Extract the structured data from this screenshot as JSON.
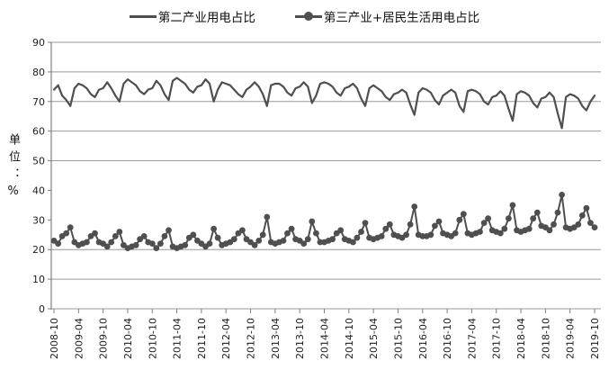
{
  "legend": {
    "items": [
      {
        "label": "第二产业用电占比",
        "marker": "line"
      },
      {
        "label": "第三产业+居民生活用电占比",
        "marker": "line-circle"
      }
    ]
  },
  "colors": {
    "series": "#4f4f4f",
    "gridline": "#9a9a9a",
    "axis": "#7f7f7f",
    "tick_text": "#1f1f1f"
  },
  "chart_data": {
    "type": "line",
    "title": "",
    "xlabel": "",
    "ylabel": "单位：%",
    "ylim": [
      0,
      90
    ],
    "ytick_interval": 10,
    "ytick_labels": [
      "0",
      "10",
      "20",
      "30",
      "40",
      "50",
      "60",
      "70",
      "80",
      "90"
    ],
    "gridline_values": [
      90,
      80,
      70,
      60,
      50,
      20,
      10,
      0
    ],
    "grid": "horizontal",
    "legend_position": "top-center",
    "x_frequency": "monthly",
    "x_start": "2008-10",
    "x_end": "2019-10",
    "x_tick_every_n_points": 6,
    "x_tick_labels": [
      "2008-10",
      "2009-04",
      "2009-10",
      "2010-04",
      "2010-10",
      "2011-04",
      "2011-10",
      "2012-04",
      "2012-10",
      "2013-04",
      "2013-10",
      "2014-04",
      "2014-10",
      "2015-04",
      "2015-10",
      "2016-04",
      "2016-10",
      "2017-04",
      "2017-10",
      "2018-04",
      "2018-10",
      "2019-04",
      "2019-10"
    ],
    "series": [
      {
        "name": "第二产业用电占比",
        "marker": "none",
        "color": "#4f4f4f",
        "values": [
          74,
          75.5,
          72,
          70.5,
          68.5,
          74.5,
          76,
          75.5,
          74.5,
          72.5,
          71.5,
          74,
          74.5,
          76.5,
          74.5,
          72,
          70,
          76,
          77.5,
          76.5,
          75.5,
          73.5,
          72.5,
          74,
          74.5,
          77,
          75.5,
          72.5,
          70.5,
          77,
          78,
          77,
          76,
          74,
          73,
          75,
          75.5,
          77.5,
          76,
          70,
          74,
          76.5,
          76,
          75.5,
          74,
          72.5,
          71.5,
          74,
          75,
          76.5,
          75,
          72.5,
          68.5,
          75.5,
          76,
          76,
          75,
          73,
          72,
          74.5,
          75,
          76.5,
          75,
          69.5,
          72,
          76,
          76.5,
          76,
          75,
          73,
          72,
          74.5,
          75,
          76,
          74.5,
          71,
          68.5,
          74.5,
          75.5,
          74.5,
          73.5,
          71.5,
          70.5,
          72.5,
          73,
          74,
          73,
          69,
          65.5,
          73,
          74.5,
          74,
          73,
          70.5,
          69,
          72,
          73,
          74,
          73,
          68.5,
          66.5,
          73.5,
          74,
          73.5,
          72.5,
          70,
          69,
          71.5,
          72,
          73.5,
          72,
          67.5,
          63.5,
          72.5,
          73.5,
          73,
          72,
          69.5,
          68,
          71,
          71.5,
          73,
          71.5,
          66,
          61,
          71.5,
          72.5,
          72,
          71,
          68.5,
          67,
          70,
          72
        ]
      },
      {
        "name": "第三产业+居民生活用电占比",
        "marker": "circle",
        "color": "#4f4f4f",
        "values": [
          23,
          22,
          24.5,
          25.5,
          27.5,
          22.5,
          21.5,
          22,
          22.5,
          24.5,
          25.5,
          22.5,
          22,
          21,
          22.5,
          24.5,
          26,
          21.5,
          20.5,
          21,
          21.5,
          23.5,
          24.5,
          22.5,
          22,
          20.5,
          22,
          24.5,
          26.5,
          21,
          20.5,
          21,
          21.5,
          24,
          25,
          23,
          22,
          21,
          22,
          27,
          24,
          21.5,
          22,
          22.5,
          23.5,
          25.5,
          26.5,
          23.5,
          22.5,
          21.5,
          23,
          25,
          31,
          22.5,
          22,
          22.5,
          23,
          25.5,
          27,
          23.5,
          23,
          22,
          23.5,
          29.5,
          25.5,
          22.5,
          22.5,
          23,
          23.5,
          25.5,
          26.5,
          23.5,
          23,
          22.5,
          24,
          26,
          29,
          24,
          23.5,
          24,
          24.5,
          27,
          28.5,
          25,
          24.5,
          24,
          25,
          28.5,
          34.5,
          25,
          24.5,
          24.5,
          25,
          28,
          29.5,
          25.5,
          25,
          24.5,
          25.5,
          30,
          32,
          25.5,
          25,
          25.5,
          26,
          29,
          30.5,
          26.5,
          26,
          25.5,
          27,
          30.5,
          35,
          26.5,
          26,
          26.5,
          27,
          30.5,
          32.5,
          28,
          27.5,
          26.5,
          28.5,
          32.5,
          38.5,
          27.5,
          27,
          27.5,
          28.5,
          31.5,
          34,
          29,
          27.5
        ]
      }
    ]
  }
}
